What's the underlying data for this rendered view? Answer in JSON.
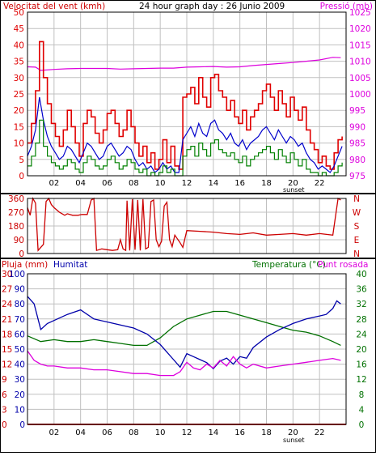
{
  "colors": {
    "wind": "#e00000",
    "gust_dark": "#008000",
    "avg_blue": "#0000cc",
    "pressure": "#dd00dd",
    "direction": "#cc0000",
    "humidity": "#0000aa",
    "temperature": "#007000",
    "dewpoint": "#dd00dd",
    "rain": "#cc0000",
    "grid": "#c0c0c0"
  },
  "chart_data": [
    {
      "type": "line",
      "title": "24 hour graph day : 26 Junio 2009",
      "left_axis_label": "Velocitat del vent (kmh)",
      "right_axis_label": "Pressió (mb)",
      "xlim": [
        0,
        24
      ],
      "x_ticks": [
        "02",
        "04",
        "06",
        "08",
        "10",
        "12",
        "14",
        "16",
        "18",
        "20",
        "22"
      ],
      "x_annotation": "sunset",
      "left_ylim": [
        0,
        50
      ],
      "left_ticks": [
        "0",
        "5",
        "10",
        "15",
        "20",
        "25",
        "30",
        "35",
        "40",
        "45",
        "50"
      ],
      "right_ylim": [
        975,
        1025
      ],
      "right_ticks": [
        "975",
        "980",
        "985",
        "990",
        "995",
        "1000",
        "1005",
        "1010",
        "1015",
        "1020",
        "1025"
      ],
      "series": [
        {
          "color_key": "pressure",
          "axis": "right",
          "x": [
            0,
            0.6,
            1,
            2,
            3,
            4,
            5,
            6,
            7,
            8,
            9,
            10,
            11,
            12,
            13,
            14,
            15,
            16,
            17,
            18,
            19,
            20,
            21,
            22,
            23,
            23.6
          ],
          "y": [
            1008.3,
            1008.2,
            1007.2,
            1007.5,
            1007.7,
            1007.8,
            1007.8,
            1007.8,
            1007.6,
            1007.7,
            1007.8,
            1007.9,
            1007.9,
            1008.2,
            1008.3,
            1008.4,
            1008.2,
            1008.3,
            1008.7,
            1009,
            1009.3,
            1009.6,
            1010,
            1010.4,
            1011.2,
            1011.1
          ]
        },
        {
          "color_key": "wind",
          "axis": "left",
          "step": true,
          "x": [
            0,
            0.3,
            0.6,
            0.9,
            1.2,
            1.5,
            1.8,
            2.1,
            2.4,
            2.7,
            3,
            3.3,
            3.6,
            3.9,
            4.2,
            4.5,
            4.8,
            5.1,
            5.4,
            5.7,
            6,
            6.3,
            6.6,
            6.9,
            7.2,
            7.5,
            7.8,
            8.1,
            8.4,
            8.7,
            9,
            9.3,
            9.6,
            9.9,
            10.2,
            10.5,
            10.8,
            11.1,
            11.4,
            11.7,
            12,
            12.3,
            12.6,
            12.9,
            13.2,
            13.5,
            13.8,
            14.1,
            14.4,
            14.7,
            15,
            15.3,
            15.6,
            15.9,
            16.2,
            16.5,
            16.8,
            17.1,
            17.4,
            17.7,
            18,
            18.3,
            18.6,
            18.9,
            19.2,
            19.5,
            19.8,
            20.1,
            20.4,
            20.7,
            21,
            21.3,
            21.6,
            21.9,
            22.2,
            22.5,
            22.8,
            23.1,
            23.4,
            23.7
          ],
          "y": [
            10,
            16,
            26,
            41,
            30,
            22,
            16,
            12,
            9,
            14,
            20,
            15,
            10,
            6,
            16,
            20,
            18,
            13,
            10,
            14,
            19,
            20,
            16,
            12,
            14,
            20,
            15,
            10,
            6,
            9,
            4,
            7,
            2,
            5,
            11,
            4,
            9,
            3,
            2,
            24,
            25,
            27,
            22,
            30,
            24,
            21,
            30,
            31,
            26,
            24,
            20,
            23,
            18,
            16,
            20,
            14,
            18,
            20,
            22,
            26,
            28,
            24,
            20,
            26,
            22,
            18,
            24,
            20,
            17,
            21,
            14,
            10,
            8,
            4,
            6,
            3,
            2,
            7,
            11,
            12
          ]
        },
        {
          "color_key": "avg_blue",
          "axis": "left",
          "x": [
            0,
            0.3,
            0.6,
            0.9,
            1.2,
            1.5,
            1.8,
            2.1,
            2.4,
            2.7,
            3,
            3.3,
            3.6,
            3.9,
            4.2,
            4.5,
            4.8,
            5.1,
            5.4,
            5.7,
            6,
            6.3,
            6.6,
            6.9,
            7.2,
            7.5,
            7.8,
            8.1,
            8.4,
            8.7,
            9,
            9.3,
            9.6,
            9.9,
            10.2,
            10.5,
            10.8,
            11.1,
            11.4,
            11.7,
            12,
            12.3,
            12.6,
            12.9,
            13.2,
            13.5,
            13.8,
            14.1,
            14.4,
            14.7,
            15,
            15.3,
            15.6,
            15.9,
            16.2,
            16.5,
            16.8,
            17.1,
            17.4,
            17.7,
            18,
            18.3,
            18.6,
            18.9,
            19.2,
            19.5,
            19.8,
            20.1,
            20.4,
            20.7,
            21,
            21.3,
            21.6,
            21.9,
            22.2,
            22.5,
            22.8,
            23.1,
            23.4,
            23.7
          ],
          "y": [
            6,
            9,
            14,
            24,
            17,
            12,
            9,
            7,
            5,
            6,
            9,
            8,
            6,
            4,
            7,
            10,
            9,
            7,
            5,
            6,
            9,
            10,
            8,
            6,
            7,
            9,
            8,
            5,
            3,
            4,
            2,
            3,
            1,
            2,
            4,
            2,
            3,
            1,
            1,
            11,
            13,
            15,
            12,
            16,
            13,
            12,
            16,
            17,
            14,
            13,
            11,
            13,
            10,
            9,
            11,
            8,
            10,
            11,
            12,
            14,
            15,
            13,
            11,
            14,
            12,
            10,
            12,
            11,
            9,
            10,
            7,
            5,
            4,
            2,
            3,
            2,
            1,
            3,
            6,
            9
          ]
        },
        {
          "color_key": "gust_dark",
          "axis": "left",
          "step": true,
          "x": [
            0,
            0.3,
            0.6,
            0.9,
            1.2,
            1.5,
            1.8,
            2.1,
            2.4,
            2.7,
            3,
            3.3,
            3.6,
            3.9,
            4.2,
            4.5,
            4.8,
            5.1,
            5.4,
            5.7,
            6,
            6.3,
            6.6,
            6.9,
            7.2,
            7.5,
            7.8,
            8.1,
            8.4,
            8.7,
            9,
            9.3,
            9.6,
            9.9,
            10.2,
            10.5,
            10.8,
            11.1,
            11.4,
            11.7,
            12,
            12.3,
            12.6,
            12.9,
            13.2,
            13.5,
            13.8,
            14.1,
            14.4,
            14.7,
            15,
            15.3,
            15.6,
            15.9,
            16.2,
            16.5,
            16.8,
            17.1,
            17.4,
            17.7,
            18,
            18.3,
            18.6,
            18.9,
            19.2,
            19.5,
            19.8,
            20.1,
            20.4,
            20.7,
            21,
            21.3,
            21.6,
            21.9,
            22.2,
            22.5,
            22.8,
            23.1,
            23.4,
            23.7
          ],
          "y": [
            3,
            6,
            10,
            17,
            9,
            6,
            4,
            3,
            2,
            3,
            5,
            4,
            2,
            1,
            4,
            6,
            5,
            3,
            2,
            3,
            5,
            6,
            4,
            2,
            3,
            5,
            4,
            2,
            1,
            2,
            0,
            1,
            0,
            1,
            3,
            1,
            2,
            0,
            0,
            6,
            8,
            9,
            6,
            10,
            8,
            6,
            10,
            11,
            8,
            7,
            6,
            7,
            5,
            4,
            6,
            3,
            5,
            6,
            7,
            8,
            9,
            7,
            5,
            8,
            6,
            4,
            7,
            5,
            3,
            5,
            2,
            1,
            1,
            0,
            1,
            0,
            0,
            1,
            3,
            4
          ]
        }
      ]
    },
    {
      "type": "line",
      "title": "",
      "xlim": [
        0,
        24
      ],
      "ylim": [
        0,
        360
      ],
      "left_ticks": [
        "0",
        "90",
        "180",
        "270",
        "360"
      ],
      "right_labels": [
        "N",
        "W",
        "S",
        "E",
        "N"
      ],
      "series": [
        {
          "color_key": "direction",
          "x": [
            0,
            0.2,
            0.4,
            0.6,
            0.8,
            1,
            1.2,
            1.4,
            1.6,
            1.8,
            2,
            2.4,
            2.8,
            3,
            3.4,
            3.8,
            4.1,
            4.5,
            4.8,
            5,
            5.2,
            5.6,
            6,
            6.4,
            6.8,
            7,
            7.2,
            7.4,
            7.5,
            7.7,
            7.9,
            8.1,
            8.3,
            8.5,
            8.7,
            8.9,
            9.1,
            9.3,
            9.5,
            9.7,
            9.9,
            10.1,
            10.3,
            10.5,
            10.7,
            10.9,
            11.1,
            11.5,
            11.7,
            12,
            13,
            14,
            15,
            16,
            17,
            18,
            19,
            20,
            21,
            22,
            23,
            23.4,
            23.6
          ],
          "y": [
            300,
            250,
            360,
            330,
            20,
            40,
            60,
            340,
            360,
            320,
            300,
            270,
            250,
            260,
            250,
            250,
            255,
            255,
            350,
            360,
            20,
            30,
            25,
            20,
            25,
            90,
            30,
            20,
            345,
            20,
            355,
            25,
            350,
            20,
            355,
            30,
            40,
            340,
            350,
            90,
            45,
            80,
            310,
            335,
            90,
            45,
            120,
            70,
            40,
            150,
            145,
            140,
            130,
            125,
            135,
            120,
            125,
            130,
            120,
            130,
            120,
            360,
            350
          ]
        }
      ]
    },
    {
      "type": "line",
      "title": "",
      "left_axis_label_rain": "Pluja (mm)",
      "left_axis_label_hum": "Humitat",
      "right_axis_label_temp": "Temperatura (°C)",
      "right_axis_label_dew": "Punt rosada",
      "x_ticks": [
        "02",
        "04",
        "06",
        "08",
        "10",
        "12",
        "14",
        "16",
        "18",
        "20",
        "22"
      ],
      "x_annotation": "sunset",
      "xlim": [
        0,
        24
      ],
      "rain_ylim": [
        0,
        30
      ],
      "rain_ticks": [
        "0",
        "3",
        "6",
        "9",
        "12",
        "15",
        "18",
        "21",
        "24",
        "27",
        "30"
      ],
      "hum_ylim": [
        0,
        100
      ],
      "hum_ticks": [
        "0",
        "10",
        "20",
        "30",
        "40",
        "50",
        "60",
        "70",
        "80",
        "90",
        "100"
      ],
      "temp_ylim": [
        0,
        40
      ],
      "temp_ticks": [
        "0",
        "4",
        "8",
        "12",
        "16",
        "20",
        "24",
        "28",
        "32",
        "36",
        "40"
      ],
      "series": [
        {
          "color_key": "temperature",
          "axis": "temp",
          "x": [
            0,
            1,
            2,
            3,
            4,
            5,
            6,
            7,
            8,
            9,
            10,
            11,
            12,
            13,
            14,
            15,
            16,
            17,
            18,
            19,
            20,
            21,
            22,
            23,
            23.6
          ],
          "y": [
            23.5,
            22,
            22.5,
            22,
            22,
            22.5,
            22,
            21.5,
            21,
            21,
            23,
            26,
            28,
            29,
            30,
            30,
            29,
            28,
            27,
            26,
            25,
            24.5,
            23.5,
            22,
            21
          ]
        },
        {
          "color_key": "humidity",
          "axis": "hum",
          "x": [
            0,
            0.5,
            1,
            1.5,
            2,
            3,
            4,
            5,
            6,
            7,
            8,
            9,
            10,
            11,
            11.5,
            12,
            12.5,
            13,
            13.5,
            14,
            14.5,
            15,
            15.5,
            16,
            16.5,
            17,
            18,
            19,
            20,
            21,
            22,
            22.5,
            23,
            23.3,
            23.6
          ],
          "y": [
            85,
            80,
            63,
            67,
            69,
            73,
            76,
            70,
            68,
            66,
            64,
            60,
            53,
            43,
            38,
            47,
            45,
            43,
            41,
            37,
            42,
            44,
            40,
            45,
            44,
            51,
            58,
            63,
            67,
            70,
            72,
            73,
            77,
            82,
            80
          ]
        },
        {
          "color_key": "dewpoint",
          "axis": "temp",
          "x": [
            0,
            0.5,
            1,
            1.5,
            2,
            3,
            4,
            5,
            6,
            7,
            8,
            9,
            10,
            11,
            11.5,
            12,
            12.5,
            13,
            13.5,
            14,
            14.5,
            15,
            15.5,
            16,
            16.5,
            17,
            18,
            19,
            20,
            21,
            22,
            23,
            23.6
          ],
          "y": [
            19.5,
            17,
            16,
            15.5,
            15.5,
            15,
            15,
            14.5,
            14.5,
            14,
            13.5,
            13.5,
            13,
            13,
            14,
            16.5,
            15,
            14.5,
            16,
            15,
            17,
            15.5,
            18,
            16,
            15,
            16,
            15,
            15.5,
            16,
            16.5,
            17,
            17.5,
            17
          ]
        },
        {
          "color_key": "rain",
          "axis": "rain",
          "x": [
            0,
            24
          ],
          "y": [
            0,
            0
          ]
        }
      ]
    }
  ]
}
